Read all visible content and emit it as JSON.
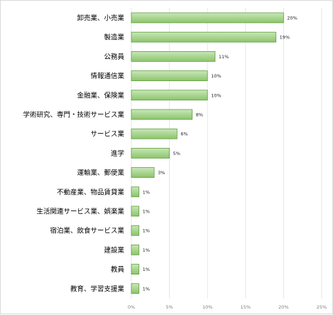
{
  "chart_data": {
    "type": "bar",
    "orientation": "horizontal",
    "categories": [
      "卸売業、小売業",
      "製造業",
      "公務員",
      "情報通信業",
      "金融業、保険業",
      "学術研究、専門・技術サービス業",
      "サービス業",
      "進学",
      "運輸業、郵便業",
      "不動産業、物品賃貸業",
      "生活関連サービス業、娯楽業",
      "宿泊業、飲食サービス業",
      "建設業",
      "教員",
      "教育、学習支援業"
    ],
    "values": [
      20,
      19,
      11,
      10,
      10,
      8,
      6,
      5,
      3,
      1,
      1,
      1,
      1,
      1,
      1
    ],
    "value_labels": [
      "20%",
      "19%",
      "11%",
      "10%",
      "10%",
      "8%",
      "6%",
      "5%",
      "3%",
      "1%",
      "1%",
      "1%",
      "1%",
      "1%",
      "1%"
    ],
    "xlim": [
      0,
      25
    ],
    "x_ticks": [
      0,
      5,
      10,
      15,
      20,
      25
    ],
    "x_tick_labels": [
      "0%",
      "5%",
      "10%",
      "15%",
      "20%",
      "25%"
    ],
    "grid": "vertical",
    "legend": "none",
    "colors": {
      "bar_fill_top": "#c9e7b8",
      "bar_fill_bottom": "#8cc46c",
      "bar_stroke": "#5f9f3f",
      "grid": "#e6e6e6"
    }
  }
}
